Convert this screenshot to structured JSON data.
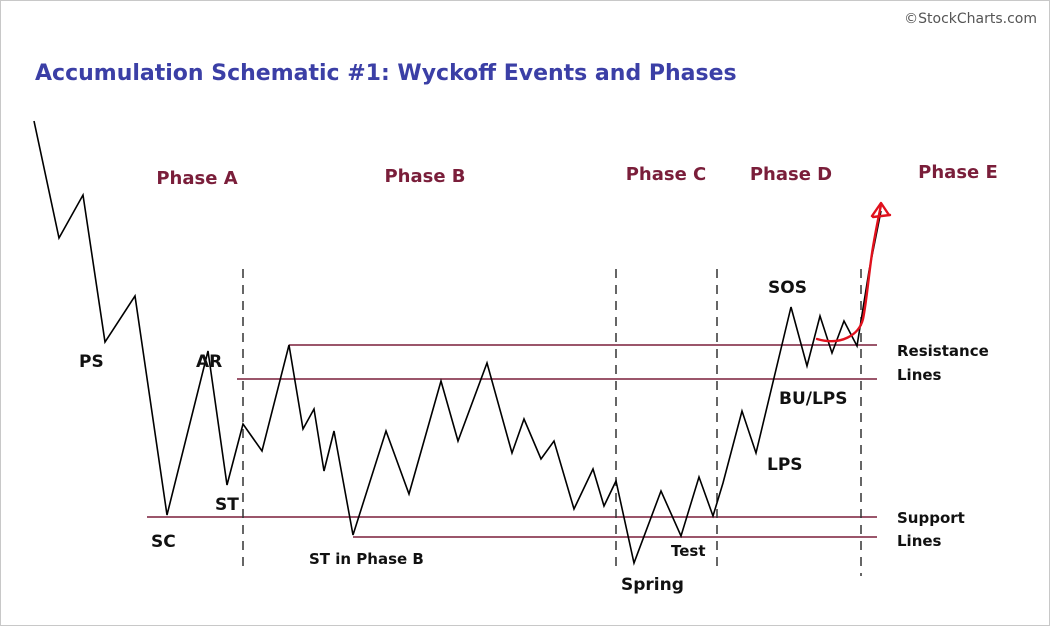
{
  "header": {
    "credit": "©StockCharts.com",
    "title": "Accumulation Schematic #1: Wyckoff Events and Phases"
  },
  "phases": [
    "Phase A",
    "Phase B",
    "Phase C",
    "Phase D",
    "Phase E"
  ],
  "events": {
    "ps": "PS",
    "sc": "SC",
    "ar": "AR",
    "st": "ST",
    "st_phase_b": "ST in Phase B",
    "spring": "Spring",
    "test": "Test",
    "lps": "LPS",
    "sos": "SOS",
    "bu_lps": "BU/LPS"
  },
  "line_labels": {
    "resistance": [
      "Resistance",
      "Lines"
    ],
    "support": [
      "Support",
      "Lines"
    ]
  },
  "colors": {
    "title": "#3b3fa6",
    "phase_label": "#7a1e3a",
    "horizontal_line": "#7a1e3a",
    "price_path": "#000000",
    "breakout_arrow": "#e0111d"
  }
}
